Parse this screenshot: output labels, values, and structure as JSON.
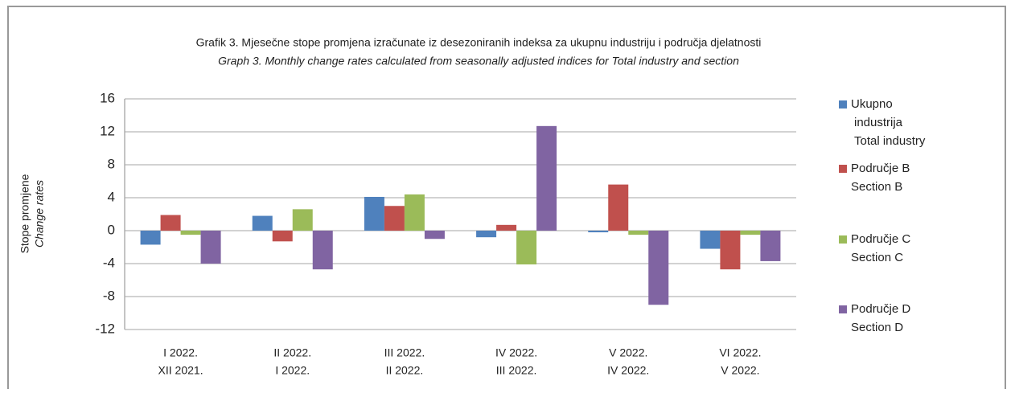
{
  "chart_data": {
    "type": "bar",
    "title": "Grafik 3. Mjesečne stope promjena izračunate iz desezoniranih indeksa za ukupnu industriju i područja djelatnosti",
    "subtitle": "Graph 3. Monthly change rates calculated from seasonally adjusted indices for Total industry and section",
    "y_label": [
      "Stope promjene",
      "Change rates"
    ],
    "categories": [
      [
        "I 2022.",
        "XII 2021."
      ],
      [
        "II 2022.",
        "I 2022."
      ],
      [
        "III 2022.",
        "II 2022."
      ],
      [
        "IV 2022.",
        "III 2022."
      ],
      [
        "V 2022.",
        "IV 2022."
      ],
      [
        "VI 2022.",
        "V 2022."
      ]
    ],
    "series": [
      {
        "name": [
          "Ukupno",
          "industrija",
          "Total industry"
        ],
        "color": "#4f81bd",
        "values": [
          -1.7,
          1.8,
          4.1,
          -0.8,
          -0.2,
          -2.2
        ]
      },
      {
        "name": [
          "Područje B",
          "Section B"
        ],
        "color": "#c0504d",
        "values": [
          1.9,
          -1.3,
          3.0,
          0.7,
          5.6,
          -4.7
        ]
      },
      {
        "name": [
          "Područje C",
          "Section C"
        ],
        "color": "#9bbb59",
        "values": [
          -0.5,
          2.6,
          4.4,
          -4.1,
          -0.5,
          -0.5
        ]
      },
      {
        "name": [
          "Područje D",
          "Section D"
        ],
        "color": "#8064a2",
        "values": [
          -4.0,
          -4.7,
          -1.0,
          12.7,
          -9.0,
          -3.7
        ]
      }
    ],
    "ylim": [
      -12,
      16
    ],
    "yticks": [
      -12,
      -8,
      -4,
      0,
      4,
      8,
      12,
      16
    ],
    "grid": true,
    "legend": "right"
  }
}
